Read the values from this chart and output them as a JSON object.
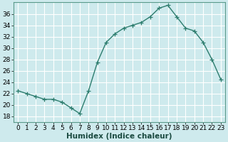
{
  "x": [
    0,
    1,
    2,
    3,
    4,
    5,
    6,
    7,
    8,
    9,
    10,
    11,
    12,
    13,
    14,
    15,
    16,
    17,
    18,
    19,
    20,
    21,
    22,
    23
  ],
  "y": [
    22.5,
    22.0,
    21.5,
    21.0,
    21.0,
    20.5,
    19.5,
    18.5,
    22.5,
    27.5,
    31.0,
    32.5,
    33.5,
    34.0,
    34.5,
    35.5,
    37.0,
    37.5,
    35.5,
    33.5,
    33.0,
    31.0,
    28.0,
    24.5
  ],
  "line_color": "#2d7d6e",
  "marker": "+",
  "marker_size": 4,
  "linewidth": 1.0,
  "xlabel": "Humidex (Indice chaleur)",
  "xlim": [
    -0.5,
    23.5
  ],
  "ylim": [
    17,
    38
  ],
  "yticks": [
    18,
    20,
    22,
    24,
    26,
    28,
    30,
    32,
    34,
    36
  ],
  "xticks": [
    0,
    1,
    2,
    3,
    4,
    5,
    6,
    7,
    8,
    9,
    10,
    11,
    12,
    13,
    14,
    15,
    16,
    17,
    18,
    19,
    20,
    21,
    22,
    23
  ],
  "bg_color": "#ceeaed",
  "grid_color": "#ffffff",
  "tick_fontsize": 6.5,
  "xlabel_fontsize": 7.5,
  "spine_color": "#5a9a8a"
}
